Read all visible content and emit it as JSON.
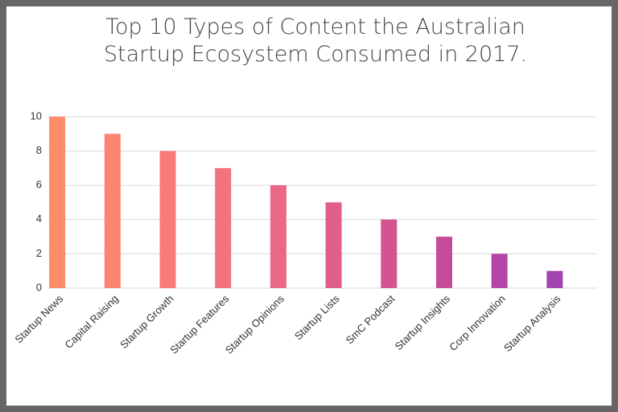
{
  "chart_data": {
    "type": "bar",
    "title": [
      "Top 10 Types of Content the Australian",
      "Startup Ecosystem Consumed in 2017."
    ],
    "categories": [
      "Startup News",
      "Capital Raising",
      "Startup Growth",
      "Startup Features",
      "Startup Opinions",
      "Startup Lists",
      "SmC Podcast",
      "Startup Insights",
      "Corp Innovation",
      "Startup Analysis"
    ],
    "values": [
      10,
      9,
      8,
      7,
      6,
      5,
      4,
      3,
      2,
      1
    ],
    "colors": [
      "#ff8c6b",
      "#fd8473",
      "#f87b79",
      "#f2727e",
      "#ea6884",
      "#e05e8a",
      "#d35490",
      "#c44c9a",
      "#b346a4",
      "#a344ad"
    ],
    "ylim": [
      0,
      10
    ],
    "yticks": [
      0,
      2,
      4,
      6,
      8,
      10
    ],
    "grid": true
  }
}
